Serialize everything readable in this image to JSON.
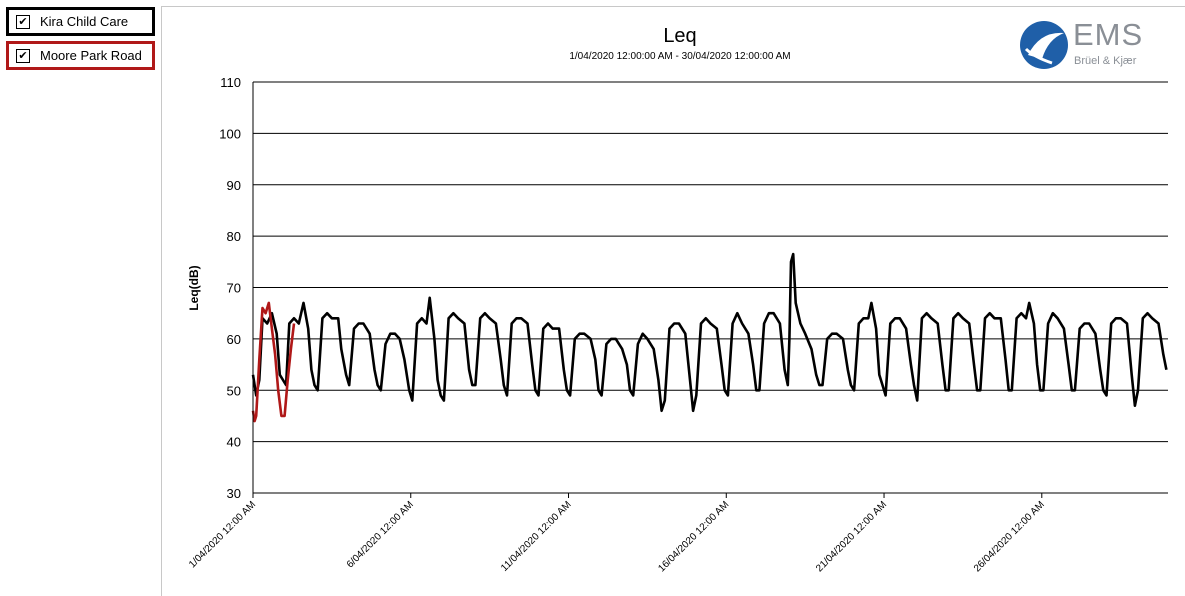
{
  "legend": [
    {
      "label": "Kira Child Care",
      "checked": "✔",
      "color": "#000000"
    },
    {
      "label": "Moore Park Road",
      "checked": "✔",
      "color": "#b01818"
    }
  ],
  "logo": {
    "text": "EMS",
    "subtext": "Brüel & Kjær",
    "icon": "ems-globe-icon",
    "color": "#1f5fa8"
  },
  "chart_data": {
    "type": "line",
    "title": "Leq",
    "subtitle": "1/04/2020 12:00:00 AM - 30/04/2020 12:00:00 AM",
    "xlabel": "",
    "ylabel": "Leq(dB)",
    "ylim": [
      30,
      110
    ],
    "yticks": [
      30,
      40,
      50,
      60,
      70,
      80,
      90,
      100,
      110
    ],
    "xlim": [
      0,
      29
    ],
    "xticks": [
      {
        "day": 0,
        "label": "1/04/2020 12:00 AM"
      },
      {
        "day": 5,
        "label": "6/04/2020 12:00 AM"
      },
      {
        "day": 10,
        "label": "11/04/2020 12:00 AM"
      },
      {
        "day": 15,
        "label": "16/04/2020 12:00 AM"
      },
      {
        "day": 20,
        "label": "21/04/2020 12:00 AM"
      },
      {
        "day": 25,
        "label": "26/04/2020 12:00 AM"
      }
    ],
    "x_unit": "days since 1/04/2020 12:00 AM",
    "grid": "horizontal",
    "series": [
      {
        "name": "Kira Child Care",
        "color": "#000000",
        "points": [
          [
            0.0,
            53
          ],
          [
            0.1,
            49
          ],
          [
            0.2,
            52
          ],
          [
            0.3,
            64
          ],
          [
            0.45,
            63
          ],
          [
            0.6,
            65
          ],
          [
            0.75,
            61
          ],
          [
            0.85,
            53
          ],
          [
            0.95,
            52
          ],
          [
            1.05,
            51
          ],
          [
            1.15,
            63
          ],
          [
            1.3,
            64
          ],
          [
            1.45,
            63
          ],
          [
            1.6,
            67
          ],
          [
            1.75,
            62
          ],
          [
            1.85,
            54
          ],
          [
            1.95,
            51
          ],
          [
            2.05,
            50
          ],
          [
            2.2,
            64
          ],
          [
            2.35,
            65
          ],
          [
            2.5,
            64
          ],
          [
            2.7,
            64
          ],
          [
            2.8,
            58
          ],
          [
            2.95,
            53
          ],
          [
            3.05,
            51
          ],
          [
            3.2,
            62
          ],
          [
            3.35,
            63
          ],
          [
            3.5,
            63
          ],
          [
            3.7,
            61
          ],
          [
            3.85,
            54
          ],
          [
            3.95,
            51
          ],
          [
            4.05,
            50
          ],
          [
            4.2,
            59
          ],
          [
            4.35,
            61
          ],
          [
            4.5,
            61
          ],
          [
            4.65,
            60
          ],
          [
            4.8,
            56
          ],
          [
            4.95,
            50
          ],
          [
            5.05,
            48
          ],
          [
            5.2,
            63
          ],
          [
            5.35,
            64
          ],
          [
            5.5,
            63
          ],
          [
            5.6,
            68
          ],
          [
            5.75,
            60
          ],
          [
            5.85,
            52
          ],
          [
            5.95,
            49
          ],
          [
            6.05,
            48
          ],
          [
            6.2,
            64
          ],
          [
            6.35,
            65
          ],
          [
            6.5,
            64
          ],
          [
            6.7,
            63
          ],
          [
            6.85,
            54
          ],
          [
            6.95,
            51
          ],
          [
            7.05,
            51
          ],
          [
            7.2,
            64
          ],
          [
            7.35,
            65
          ],
          [
            7.5,
            64
          ],
          [
            7.7,
            63
          ],
          [
            7.85,
            56
          ],
          [
            7.95,
            51
          ],
          [
            8.05,
            49
          ],
          [
            8.2,
            63
          ],
          [
            8.35,
            64
          ],
          [
            8.5,
            64
          ],
          [
            8.7,
            63
          ],
          [
            8.85,
            55
          ],
          [
            8.95,
            50
          ],
          [
            9.05,
            49
          ],
          [
            9.2,
            62
          ],
          [
            9.35,
            63
          ],
          [
            9.5,
            62
          ],
          [
            9.7,
            62
          ],
          [
            9.85,
            54
          ],
          [
            9.95,
            50
          ],
          [
            10.05,
            49
          ],
          [
            10.2,
            60
          ],
          [
            10.35,
            61
          ],
          [
            10.5,
            61
          ],
          [
            10.7,
            60
          ],
          [
            10.85,
            56
          ],
          [
            10.95,
            50
          ],
          [
            11.05,
            49
          ],
          [
            11.2,
            59
          ],
          [
            11.35,
            60
          ],
          [
            11.5,
            60
          ],
          [
            11.7,
            58
          ],
          [
            11.85,
            55
          ],
          [
            11.95,
            50
          ],
          [
            12.05,
            49
          ],
          [
            12.2,
            59
          ],
          [
            12.35,
            61
          ],
          [
            12.5,
            60
          ],
          [
            12.7,
            58
          ],
          [
            12.85,
            52
          ],
          [
            12.95,
            46
          ],
          [
            13.05,
            48
          ],
          [
            13.2,
            62
          ],
          [
            13.35,
            63
          ],
          [
            13.5,
            63
          ],
          [
            13.7,
            61
          ],
          [
            13.85,
            52
          ],
          [
            13.95,
            46
          ],
          [
            14.05,
            49
          ],
          [
            14.2,
            63
          ],
          [
            14.35,
            64
          ],
          [
            14.5,
            63
          ],
          [
            14.7,
            62
          ],
          [
            14.85,
            55
          ],
          [
            14.95,
            50
          ],
          [
            15.05,
            49
          ],
          [
            15.2,
            63
          ],
          [
            15.35,
            65
          ],
          [
            15.5,
            63
          ],
          [
            15.7,
            61
          ],
          [
            15.85,
            55
          ],
          [
            15.95,
            50
          ],
          [
            16.05,
            50
          ],
          [
            16.2,
            63
          ],
          [
            16.35,
            65
          ],
          [
            16.5,
            65
          ],
          [
            16.7,
            63
          ],
          [
            16.85,
            54
          ],
          [
            16.95,
            51
          ],
          [
            17.0,
            60
          ],
          [
            17.05,
            75
          ],
          [
            17.12,
            76.5
          ],
          [
            17.2,
            67
          ],
          [
            17.35,
            63
          ],
          [
            17.5,
            61
          ],
          [
            17.7,
            58
          ],
          [
            17.85,
            53
          ],
          [
            17.95,
            51
          ],
          [
            18.05,
            51
          ],
          [
            18.2,
            60
          ],
          [
            18.35,
            61
          ],
          [
            18.5,
            61
          ],
          [
            18.7,
            60
          ],
          [
            18.85,
            54
          ],
          [
            18.95,
            51
          ],
          [
            19.05,
            50
          ],
          [
            19.2,
            63
          ],
          [
            19.35,
            64
          ],
          [
            19.5,
            64
          ],
          [
            19.6,
            67
          ],
          [
            19.75,
            62
          ],
          [
            19.85,
            53
          ],
          [
            19.95,
            51
          ],
          [
            20.05,
            49
          ],
          [
            20.2,
            63
          ],
          [
            20.35,
            64
          ],
          [
            20.5,
            64
          ],
          [
            20.7,
            62
          ],
          [
            20.85,
            55
          ],
          [
            20.95,
            51
          ],
          [
            21.05,
            48
          ],
          [
            21.2,
            64
          ],
          [
            21.35,
            65
          ],
          [
            21.5,
            64
          ],
          [
            21.7,
            63
          ],
          [
            21.85,
            55
          ],
          [
            21.95,
            50
          ],
          [
            22.05,
            50
          ],
          [
            22.2,
            64
          ],
          [
            22.35,
            65
          ],
          [
            22.5,
            64
          ],
          [
            22.7,
            63
          ],
          [
            22.85,
            55
          ],
          [
            22.95,
            50
          ],
          [
            23.05,
            50
          ],
          [
            23.2,
            64
          ],
          [
            23.35,
            65
          ],
          [
            23.5,
            64
          ],
          [
            23.7,
            64
          ],
          [
            23.85,
            56
          ],
          [
            23.95,
            50
          ],
          [
            24.05,
            50
          ],
          [
            24.2,
            64
          ],
          [
            24.35,
            65
          ],
          [
            24.5,
            64
          ],
          [
            24.6,
            67
          ],
          [
            24.75,
            63
          ],
          [
            24.85,
            55
          ],
          [
            24.95,
            50
          ],
          [
            25.05,
            50
          ],
          [
            25.2,
            63
          ],
          [
            25.35,
            65
          ],
          [
            25.5,
            64
          ],
          [
            25.7,
            62
          ],
          [
            25.85,
            55
          ],
          [
            25.95,
            50
          ],
          [
            26.05,
            50
          ],
          [
            26.2,
            62
          ],
          [
            26.35,
            63
          ],
          [
            26.5,
            63
          ],
          [
            26.7,
            61
          ],
          [
            26.85,
            54
          ],
          [
            26.95,
            50
          ],
          [
            27.05,
            49
          ],
          [
            27.2,
            63
          ],
          [
            27.35,
            64
          ],
          [
            27.5,
            64
          ],
          [
            27.7,
            63
          ],
          [
            27.85,
            53
          ],
          [
            27.95,
            47
          ],
          [
            28.05,
            50
          ],
          [
            28.2,
            64
          ],
          [
            28.35,
            65
          ],
          [
            28.5,
            64
          ],
          [
            28.7,
            63
          ],
          [
            28.85,
            57
          ],
          [
            28.95,
            54
          ]
        ]
      },
      {
        "name": "Moore Park Road",
        "color": "#b01818",
        "points": [
          [
            0.0,
            46
          ],
          [
            0.05,
            44
          ],
          [
            0.1,
            45
          ],
          [
            0.2,
            56
          ],
          [
            0.3,
            66
          ],
          [
            0.4,
            65
          ],
          [
            0.5,
            67
          ],
          [
            0.6,
            62
          ],
          [
            0.7,
            57
          ],
          [
            0.8,
            50
          ],
          [
            0.9,
            45
          ],
          [
            1.0,
            45
          ],
          [
            1.1,
            52
          ],
          [
            1.2,
            58
          ],
          [
            1.3,
            63
          ]
        ]
      }
    ]
  }
}
